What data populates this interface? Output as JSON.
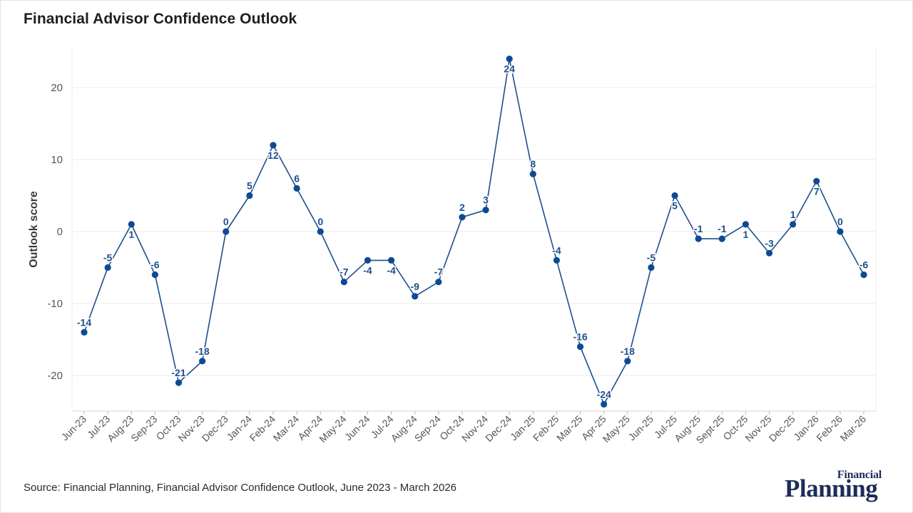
{
  "title": "Financial Advisor Confidence Outlook",
  "source": "Source: Financial Planning, Financial Advisor Confidence Outlook, June 2023 - March 2026",
  "brand": {
    "top": "Financial",
    "main": "Planning"
  },
  "colors": {
    "line": "#1d4f8c",
    "point": "#0d4a94",
    "label": "#1d4f8c",
    "grid": "#ececec"
  },
  "chart_data": {
    "type": "line",
    "title": "Financial Advisor Confidence Outlook",
    "xlabel": "",
    "ylabel": "Outlook score",
    "ylim": [
      -25,
      25
    ],
    "yticks": [
      -20,
      -10,
      0,
      10,
      20
    ],
    "grid": true,
    "legend": "none",
    "categories": [
      "Jun-23",
      "Jul-23",
      "Aug-23",
      "Sep-23",
      "Oct-23",
      "Nov-23",
      "Dec-23",
      "Jan-24",
      "Feb-24",
      "Mar-24",
      "Apr-24",
      "May-24",
      "Jun-24",
      "Jul-24",
      "Aug-24",
      "Sep-24",
      "Oct-24",
      "Nov-24",
      "Dec-24",
      "Jan-25",
      "Feb-25",
      "Mar-25",
      "Apr-25",
      "May-25",
      "Jun-25",
      "Jul-25",
      "Aug-25",
      "Sept-25",
      "Oct-25",
      "Nov-25",
      "Dec-25",
      "Jan-26",
      "Feb-26",
      "Mar-26"
    ],
    "series": [
      {
        "name": "Outlook score",
        "values": [
          -14,
          -5,
          1,
          -6,
          -21,
          -18,
          0,
          5,
          12,
          6,
          0,
          -7,
          -4,
          -4,
          -9,
          -7,
          2,
          3,
          24,
          8,
          -4,
          -16,
          -24,
          -18,
          -5,
          5,
          -1,
          -1,
          1,
          -3,
          1,
          7,
          0,
          -6
        ]
      }
    ]
  }
}
